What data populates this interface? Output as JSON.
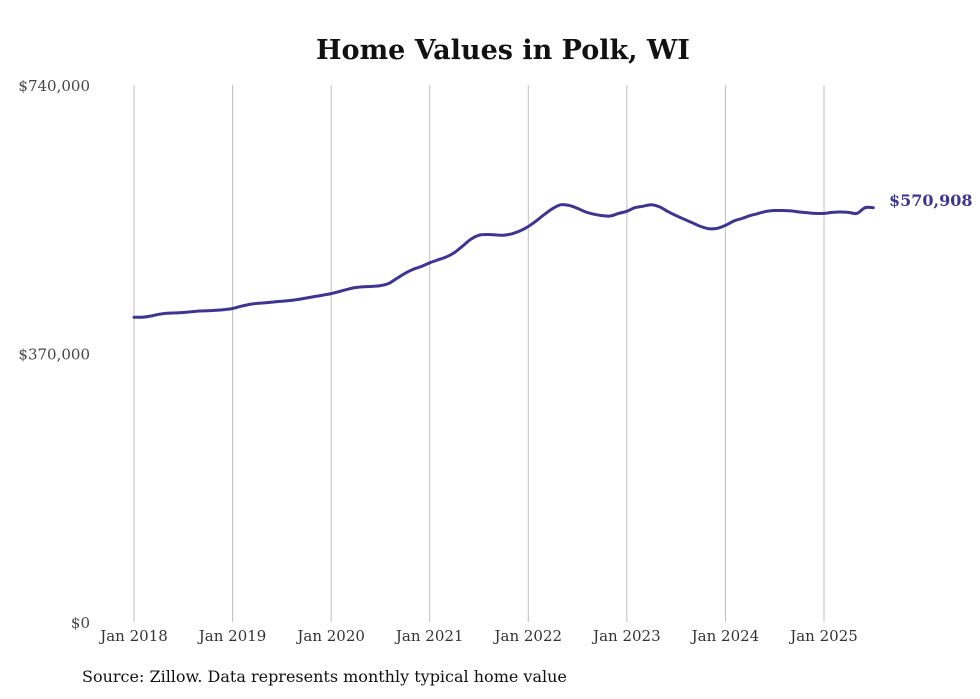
{
  "chart_data": {
    "type": "line",
    "title": "Home Values in Polk, WI",
    "xlabel": "",
    "ylabel": "",
    "ylim": [
      0,
      740000
    ],
    "y_ticks": [
      {
        "value": 0,
        "label": "$0"
      },
      {
        "value": 370000,
        "label": "$370,000"
      },
      {
        "value": 740000,
        "label": "$740,000"
      }
    ],
    "x_ticks": [
      {
        "value": "2018-01",
        "label": "Jan 2018"
      },
      {
        "value": "2019-01",
        "label": "Jan 2019"
      },
      {
        "value": "2020-01",
        "label": "Jan 2020"
      },
      {
        "value": "2021-01",
        "label": "Jan 2021"
      },
      {
        "value": "2022-01",
        "label": "Jan 2022"
      },
      {
        "value": "2023-01",
        "label": "Jan 2023"
      },
      {
        "value": "2024-01",
        "label": "Jan 2024"
      },
      {
        "value": "2025-01",
        "label": "Jan 2025"
      }
    ],
    "grid": {
      "vertical": true,
      "horizontal": false
    },
    "series": [
      {
        "color": "#3d3590",
        "x": [
          "2018-01",
          "2018-02",
          "2018-03",
          "2018-04",
          "2018-05",
          "2018-06",
          "2018-07",
          "2018-08",
          "2018-09",
          "2018-10",
          "2018-11",
          "2018-12",
          "2019-01",
          "2019-02",
          "2019-03",
          "2019-04",
          "2019-05",
          "2019-06",
          "2019-07",
          "2019-08",
          "2019-09",
          "2019-10",
          "2019-11",
          "2019-12",
          "2020-01",
          "2020-02",
          "2020-03",
          "2020-04",
          "2020-05",
          "2020-06",
          "2020-07",
          "2020-08",
          "2020-09",
          "2020-10",
          "2020-11",
          "2020-12",
          "2021-01",
          "2021-02",
          "2021-03",
          "2021-04",
          "2021-05",
          "2021-06",
          "2021-07",
          "2021-08",
          "2021-09",
          "2021-10",
          "2021-11",
          "2021-12",
          "2022-01",
          "2022-02",
          "2022-03",
          "2022-04",
          "2022-05",
          "2022-06",
          "2022-07",
          "2022-08",
          "2022-09",
          "2022-10",
          "2022-11",
          "2022-12",
          "2023-01",
          "2023-02",
          "2023-03",
          "2023-04",
          "2023-05",
          "2023-06",
          "2023-07",
          "2023-08",
          "2023-09",
          "2023-10",
          "2023-11",
          "2023-12",
          "2024-01",
          "2024-02",
          "2024-03",
          "2024-04",
          "2024-05",
          "2024-06",
          "2024-07",
          "2024-08",
          "2024-09",
          "2024-10",
          "2024-11",
          "2024-12",
          "2025-01",
          "2025-02",
          "2025-03",
          "2025-04",
          "2025-05",
          "2025-06",
          "2025-07"
        ],
        "values": [
          420000,
          420000,
          421500,
          424000,
          425500,
          426000,
          426500,
          427500,
          428500,
          429000,
          429500,
          430500,
          432000,
          435000,
          437500,
          439000,
          440000,
          441000,
          442000,
          443000,
          444500,
          446500,
          448500,
          450500,
          452500,
          455500,
          458500,
          461000,
          462000,
          462500,
          463500,
          466500,
          473500,
          480500,
          486000,
          490000,
          495000,
          499000,
          503000,
          509000,
          518000,
          527500,
          533000,
          534000,
          533500,
          533000,
          535000,
          539000,
          545000,
          553000,
          562000,
          570000,
          575000,
          574000,
          570000,
          565000,
          562000,
          560000,
          559500,
          563000,
          566000,
          571000,
          573000,
          575000,
          572000,
          565500,
          560000,
          555000,
          550000,
          545000,
          542000,
          542500,
          546500,
          552500,
          556000,
          560000,
          563000,
          566000,
          567000,
          567000,
          566500,
          565000,
          564000,
          563000,
          563000,
          564500,
          565000,
          564500,
          563000,
          570908,
          570908
        ]
      }
    ],
    "end_label": "$570,908",
    "source": "Source: Zillow. Data represents monthly typical home value"
  }
}
